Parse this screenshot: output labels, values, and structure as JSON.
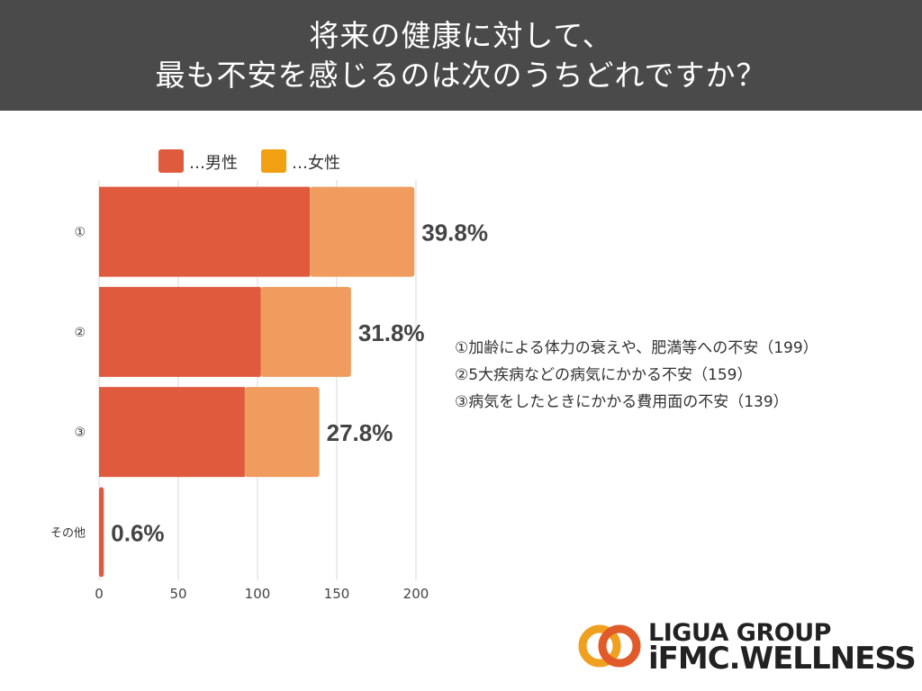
{
  "header": {
    "line1": "将来の健康に対して、",
    "line2": "最も不安を感じるのは次のうちどれですか？"
  },
  "chart_data": {
    "type": "bar",
    "orientation": "horizontal",
    "stacked": true,
    "categories": [
      "①",
      "②",
      "③",
      "その他"
    ],
    "series": [
      {
        "name": "…男性",
        "values": [
          133,
          102,
          92,
          3
        ]
      },
      {
        "name": "…女性",
        "values": [
          66,
          57,
          47,
          0
        ]
      }
    ],
    "data_labels": [
      "39.8%",
      "31.8%",
      "27.8%",
      "0.6%"
    ],
    "x_ticks": [
      "0",
      "50",
      "100",
      "150",
      "200"
    ],
    "xlim": [
      0,
      200
    ],
    "legend": [
      "…男性",
      "…女性"
    ],
    "legend_position": "top",
    "colors": {
      "male": "#e05a3e",
      "female": "#ef9c5e",
      "legend_female": "#f0a010",
      "grid": "#d9d9d9"
    }
  },
  "notes": [
    "①加齢による体力の衰えや、肥満等への不安（199）",
    "②5大疾病などの病気にかかる不安（159）",
    "③病気をしたときにかかる費用面の不安（139）"
  ],
  "logo": {
    "line1": "LIGUA GROUP",
    "line2": "iFMC.WELLNESS"
  }
}
